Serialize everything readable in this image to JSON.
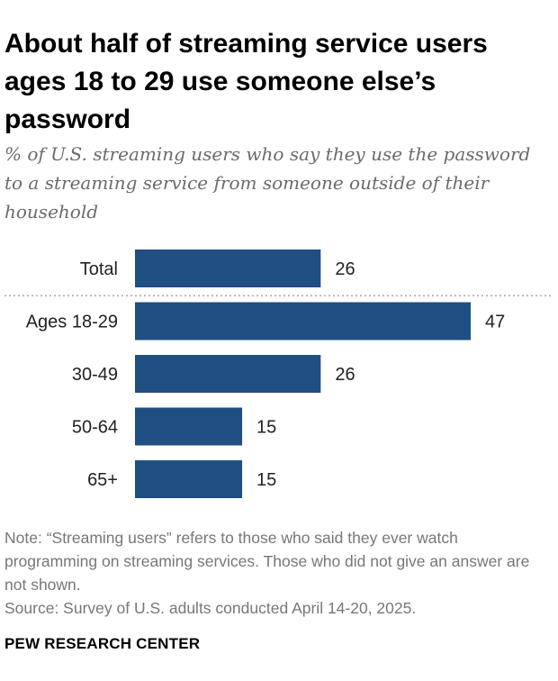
{
  "header": {
    "title": "About half of streaming service users ages 18 to 29 use someone else’s password",
    "subtitle": "% of U.S. streaming users who say they use the password to a streaming service from someone outside of their household"
  },
  "footer": {
    "note": "Note: “Streaming users” refers to those who said they ever watch programming on streaming services. Those who did not give an answer are not shown.",
    "source": "Source: Survey of U.S. adults conducted April 14-20, 2025.",
    "brand": "PEW RESEARCH CENTER"
  },
  "chart_data": {
    "type": "bar",
    "orientation": "horizontal",
    "title": "About half of streaming service users ages 18 to 29 use someone else’s password",
    "subtitle": "% of U.S. streaming users who say they use the password to a streaming service from someone outside of their household",
    "categories": [
      "Total",
      "Ages 18-29",
      "30-49",
      "50-64",
      "65+"
    ],
    "values": [
      26,
      47,
      26,
      15,
      15
    ],
    "xlabel": "",
    "ylabel": "",
    "xlim": [
      0,
      47
    ],
    "grid": false,
    "separator_after": "Total",
    "colors": {
      "bar": "#1f4e82",
      "separator": "#aaaaaa"
    }
  }
}
